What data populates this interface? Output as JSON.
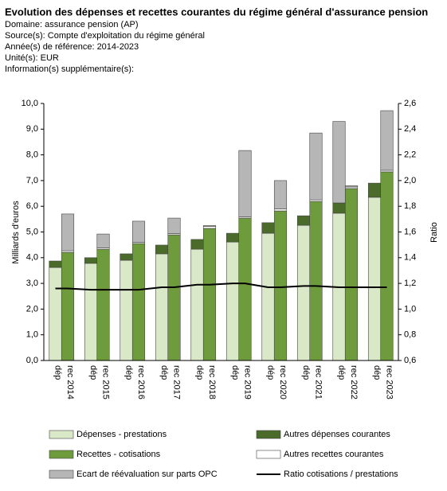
{
  "header": {
    "title": "Evolution des dépenses et recettes courantes du régime général d'assurance pension",
    "lines": [
      "Domaine: assurance pension (AP)",
      "Source(s): Compte d'exploitation du régime général",
      "Année(s) de référence: 2014-2023",
      "Unité(s): EUR",
      "Information(s) supplémentaire(s):"
    ]
  },
  "chart_data": {
    "type": "stacked_bar_line",
    "ylabel": "Milliards d'euros",
    "y2label": "Ratio",
    "categories": [
      "dép",
      "rec 2014",
      "dép",
      "rec 2015",
      "dép",
      "rec 2016",
      "dép",
      "rec 2017",
      "dép",
      "rec 2018",
      "dép",
      "rec 2019",
      "dép",
      "rec 2020",
      "dép",
      "rec 2021",
      "dép",
      "rec 2022",
      "dép",
      "rec 2023"
    ],
    "ylim": [
      0,
      10
    ],
    "yticks": [
      {
        "value": 0,
        "label": "0,0"
      },
      {
        "value": 1,
        "label": "1,0"
      },
      {
        "value": 2,
        "label": "2,0"
      },
      {
        "value": 3,
        "label": "3,0"
      },
      {
        "value": 4,
        "label": "4,0"
      },
      {
        "value": 5,
        "label": "5,0"
      },
      {
        "value": 6,
        "label": "6,0"
      },
      {
        "value": 7,
        "label": "7,0"
      },
      {
        "value": 8,
        "label": "8,0"
      },
      {
        "value": 9,
        "label": "9,0"
      },
      {
        "value": 10,
        "label": "10,0"
      }
    ],
    "y2lim": [
      0.6,
      2.6
    ],
    "y2ticks": [
      {
        "value": 0.6,
        "label": "0,6"
      },
      {
        "value": 0.8,
        "label": "0,8"
      },
      {
        "value": 1.0,
        "label": "1,0"
      },
      {
        "value": 1.2,
        "label": "1,2"
      },
      {
        "value": 1.4,
        "label": "1,4"
      },
      {
        "value": 1.6,
        "label": "1,6"
      },
      {
        "value": 1.8,
        "label": "1,8"
      },
      {
        "value": 2.0,
        "label": "2,0"
      },
      {
        "value": 2.2,
        "label": "2,2"
      },
      {
        "value": 2.4,
        "label": "2,4"
      },
      {
        "value": 2.6,
        "label": "2,6"
      }
    ],
    "series": [
      {
        "name": "Dépenses - prestations",
        "color": "#d9e9c8",
        "kind": "bar",
        "values": [
          3.62,
          null,
          3.78,
          null,
          3.9,
          null,
          4.15,
          null,
          4.33,
          null,
          4.61,
          null,
          4.95,
          null,
          5.26,
          null,
          5.73,
          null,
          6.35,
          null
        ]
      },
      {
        "name": "Autres dépenses courantes",
        "color": "#4b6b2b",
        "kind": "bar",
        "values": [
          0.25,
          null,
          0.22,
          null,
          0.25,
          null,
          0.34,
          null,
          0.38,
          null,
          0.34,
          null,
          0.41,
          null,
          0.37,
          null,
          0.4,
          null,
          0.55,
          null
        ]
      },
      {
        "name": "Recettes - cotisations",
        "color": "#6e9c3c",
        "kind": "bar",
        "values": [
          null,
          4.21,
          null,
          4.33,
          null,
          4.55,
          null,
          4.89,
          null,
          5.14,
          null,
          5.54,
          null,
          5.82,
          null,
          6.19,
          null,
          6.69,
          null,
          7.34
        ]
      },
      {
        "name": "Autres recettes courantes",
        "color": "#ffffff",
        "kind": "bar",
        "values": [
          null,
          0.06,
          null,
          0.05,
          null,
          0.05,
          null,
          0.05,
          null,
          0.08,
          null,
          0.05,
          null,
          0.08,
          null,
          0.06,
          null,
          0.06,
          null,
          0.06
        ]
      },
      {
        "name": "Ecart de réévaluation sur parts OPC",
        "color": "#b6b6b6",
        "kind": "bar",
        "values": [
          null,
          1.43,
          null,
          0.54,
          null,
          0.82,
          null,
          0.6,
          null,
          0.03,
          null,
          2.58,
          null,
          1.1,
          null,
          2.6,
          3.17,
          0.05,
          null,
          2.32
        ]
      },
      {
        "name": "Ratio cotisations / prestations",
        "color": "#000000",
        "kind": "line",
        "axis": "y2",
        "values": [
          1.16,
          1.16,
          1.15,
          1.15,
          1.15,
          1.15,
          1.17,
          1.17,
          1.19,
          1.19,
          1.2,
          1.2,
          1.17,
          1.17,
          1.18,
          1.18,
          1.17,
          1.17,
          1.17,
          1.17
        ]
      }
    ]
  }
}
